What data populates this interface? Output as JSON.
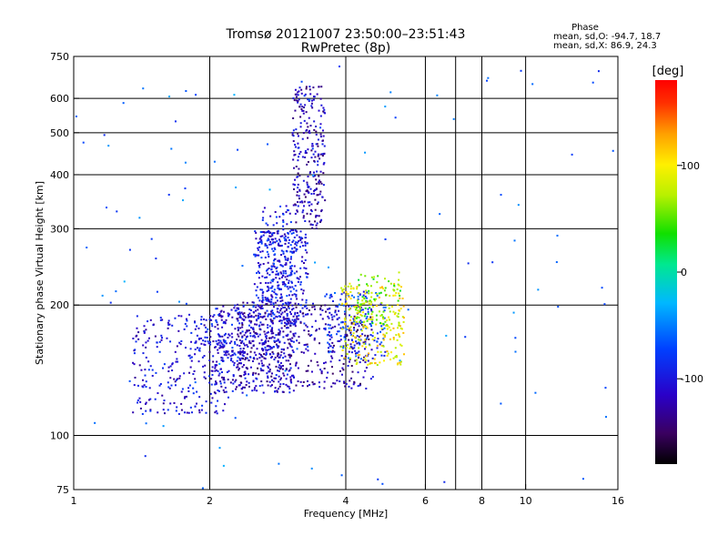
{
  "chart_data": {
    "type": "scatter",
    "title": "Tromsø 20121007 23:50:00–23:51:43",
    "subtitle": "RwPretec (8p)",
    "xlabel": "Frequency [MHz]",
    "ylabel": "Stationary phase Virtual Height [km]",
    "x_scale": "log",
    "y_scale": "log",
    "xlim": [
      1,
      16
    ],
    "ylim": [
      75,
      750
    ],
    "x_ticks": [
      "1",
      "2",
      "4",
      "6",
      "8",
      "10",
      "16"
    ],
    "y_ticks": [
      "75",
      "100",
      "200",
      "300",
      "400",
      "500",
      "600",
      "750"
    ],
    "x_gridlines": [
      2,
      4,
      6,
      7,
      8,
      10
    ],
    "y_gridlines": [
      100,
      200,
      300,
      400,
      500,
      600
    ],
    "grid": true,
    "phase_stats": {
      "heading": "Phase",
      "line_o": "mean, sd,O:  -94.7, 18.7",
      "line_x": "mean, sd,X:  86.9, 24.3"
    },
    "colorbar": {
      "label": "[deg]",
      "ticks": [
        "100",
        "0",
        "-100"
      ],
      "tick_values": [
        100,
        0,
        -100
      ],
      "range": [
        -180,
        180
      ]
    },
    "clusters": [
      {
        "x": [
          2.05,
          3.1
        ],
        "y": [
          125,
          200
        ],
        "phase": -110,
        "count": 380
      },
      {
        "x": [
          1.35,
          2.2
        ],
        "y": [
          112,
          190
        ],
        "phase": -105,
        "count": 260
      },
      {
        "x": [
          2.5,
          3.3
        ],
        "y": [
          180,
          300
        ],
        "phase": -100,
        "count": 320
      },
      {
        "x": [
          3.05,
          3.6
        ],
        "y": [
          300,
          640
        ],
        "phase": -120,
        "count": 260
      },
      {
        "x": [
          2.6,
          3.05
        ],
        "y": [
          200,
          340
        ],
        "phase": -95,
        "count": 140
      },
      {
        "x": [
          2.3,
          4.6
        ],
        "y": [
          128,
          205
        ],
        "phase": -125,
        "count": 420
      },
      {
        "x": [
          3.6,
          4.9
        ],
        "y": [
          150,
          215
        ],
        "phase": -80,
        "count": 160
      },
      {
        "x": [
          3.9,
          5.4
        ],
        "y": [
          145,
          225
        ],
        "phase": 95,
        "count": 220
      },
      {
        "x": [
          4.2,
          5.3
        ],
        "y": [
          180,
          240
        ],
        "phase": 55,
        "count": 80
      },
      {
        "x": [
          1.8,
          2.7
        ],
        "y": [
          150,
          200
        ],
        "phase": -95,
        "count": 90
      },
      {
        "x": [
          1.0,
          16.0
        ],
        "y": [
          75,
          750
        ],
        "phase": -60,
        "count": 110
      }
    ]
  }
}
